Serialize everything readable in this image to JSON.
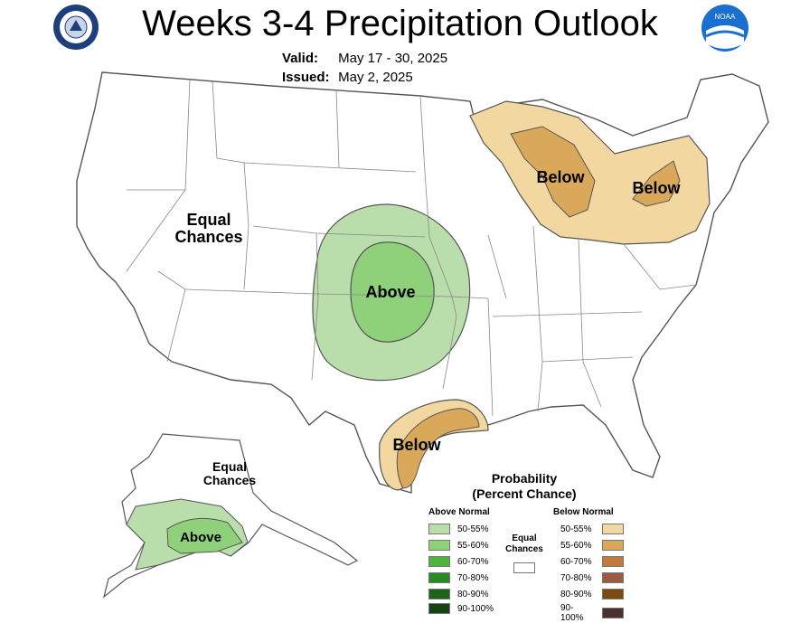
{
  "header": {
    "title": "Weeks 3-4 Precipitation Outlook",
    "valid_label": "Valid:",
    "valid_value": "May 17 - 30, 2025",
    "issued_label": "Issued:",
    "issued_value": "May 2, 2025",
    "left_logo": "department-of-commerce-seal",
    "right_logo": "noaa-logo",
    "noaa_text": "NOAA"
  },
  "map_labels": {
    "west_line1": "Equal",
    "west_line2": "Chances",
    "plains": "Above",
    "great_lakes": "Below",
    "northeast": "Below",
    "gulf": "Below",
    "alaska_eq_line1": "Equal",
    "alaska_eq_line2": "Chances",
    "alaska_above": "Above"
  },
  "legend": {
    "title_line1": "Probability",
    "title_line2": "(Percent Chance)",
    "above_heading": "Above Normal",
    "below_heading": "Below Normal",
    "equal_line1": "Equal",
    "equal_line2": "Chances",
    "above": [
      {
        "label": "50-55%",
        "color": "#b9deab"
      },
      {
        "label": "55-60%",
        "color": "#8fd07a"
      },
      {
        "label": "60-70%",
        "color": "#4fb43a"
      },
      {
        "label": "70-80%",
        "color": "#2a8a22"
      },
      {
        "label": "80-90%",
        "color": "#1d6418"
      },
      {
        "label": "90-100%",
        "color": "#144411"
      }
    ],
    "below": [
      {
        "label": "50-55%",
        "color": "#f2d8a0"
      },
      {
        "label": "55-60%",
        "color": "#d9a85a"
      },
      {
        "label": "60-70%",
        "color": "#c27a3a"
      },
      {
        "label": "70-80%",
        "color": "#9b5a42"
      },
      {
        "label": "80-90%",
        "color": "#7a4a10"
      },
      {
        "label": "90-100%",
        "color": "#4a2f2f"
      }
    ]
  }
}
